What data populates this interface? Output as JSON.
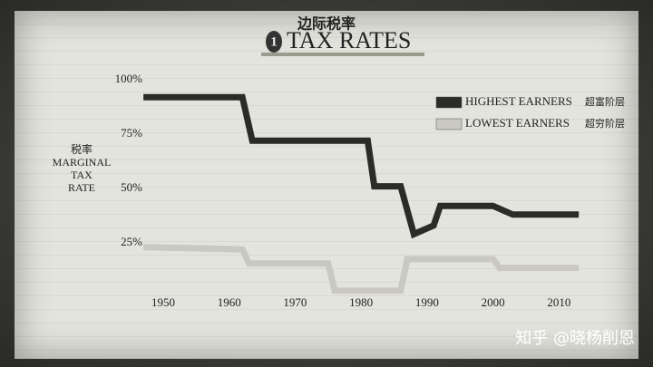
{
  "chart_data": {
    "type": "line",
    "title_zh": "边际税率",
    "title_badge": "1",
    "title": "TAX RATES",
    "y_label": [
      "税率",
      "MARGINAL",
      "TAX",
      "RATE"
    ],
    "series": [
      {
        "name": "HIGHEST EARNERS",
        "name_zh": "超富阶层",
        "color": "#2b2b28",
        "x": [
          1947,
          1962,
          1963.5,
          1981,
          1982,
          1986,
          1988,
          1991,
          1992,
          2000,
          2003,
          2013
        ],
        "values": [
          92,
          92,
          72,
          72,
          51,
          51,
          29,
          33,
          42,
          42,
          38,
          38
        ]
      },
      {
        "name": "LOWEST EARNERS",
        "name_zh": "超穷阶层",
        "color": "#c9c9c1",
        "x": [
          1947,
          1962,
          1963,
          1975,
          1976,
          1986,
          1987,
          2000,
          2001,
          2013
        ],
        "values": [
          23,
          22,
          15.5,
          15.5,
          3,
          3,
          17.5,
          17.5,
          13.5,
          13.5
        ]
      }
    ],
    "xlim": [
      1945,
      2015
    ],
    "ylim": [
      0,
      100
    ],
    "xticks": [
      1950,
      1960,
      1970,
      1980,
      1990,
      2000,
      2010
    ],
    "yticks": [
      {
        "value": 25,
        "label": "25%"
      },
      {
        "value": 50,
        "label": "50%"
      },
      {
        "value": 75,
        "label": "75%"
      },
      {
        "value": 100,
        "label": "100%"
      }
    ],
    "watermark": "知乎 @晓杨削恩"
  }
}
